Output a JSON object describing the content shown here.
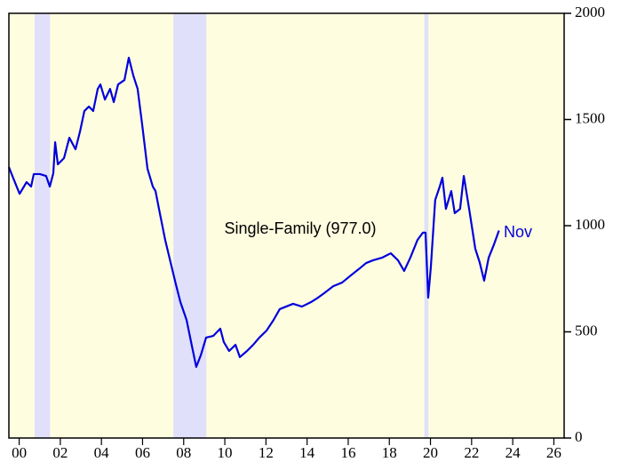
{
  "chart_data": {
    "type": "line",
    "annotations": [
      "Single-Family (977.0)",
      "Nov"
    ],
    "xlim": [
      2000,
      2027
    ],
    "xticks": [
      {
        "value": 2000.5,
        "label": "00"
      },
      {
        "value": 2002.5,
        "label": "02"
      },
      {
        "value": 2004.5,
        "label": "04"
      },
      {
        "value": 2006.5,
        "label": "06"
      },
      {
        "value": 2008.5,
        "label": "08"
      },
      {
        "value": 2010.5,
        "label": "10"
      },
      {
        "value": 2012.5,
        "label": "12"
      },
      {
        "value": 2014.5,
        "label": "14"
      },
      {
        "value": 2016.5,
        "label": "16"
      },
      {
        "value": 2018.5,
        "label": "18"
      },
      {
        "value": 2020.5,
        "label": "20"
      },
      {
        "value": 2022.5,
        "label": "22"
      },
      {
        "value": 2024.5,
        "label": "24"
      },
      {
        "value": 2026.5,
        "label": "26"
      }
    ],
    "ylim": [
      0,
      2000
    ],
    "yticks": [
      0,
      500,
      1000,
      1500,
      2000
    ],
    "shaded_periods": [
      [
        2001.25,
        2002.0
      ],
      [
        2008.0,
        2009.6
      ],
      [
        2020.2,
        2020.4
      ]
    ],
    "shade_color": "#e0e0fa",
    "background": "#fffde0",
    "series": [
      {
        "name": "Single-Family",
        "color": "#0000dd",
        "x": [
          2000.0,
          2000.17,
          2000.52,
          2000.86,
          2001.08,
          2001.21,
          2001.51,
          2001.81,
          2001.99,
          2002.16,
          2002.25,
          2002.38,
          2002.68,
          2002.94,
          2003.24,
          2003.46,
          2003.67,
          2003.89,
          2004.1,
          2004.32,
          2004.45,
          2004.67,
          2004.92,
          2005.1,
          2005.31,
          2005.62,
          2005.83,
          2006.05,
          2006.26,
          2006.48,
          2006.74,
          2007.0,
          2007.13,
          2007.34,
          2007.6,
          2007.86,
          2008.12,
          2008.34,
          2008.64,
          2008.86,
          2009.11,
          2009.33,
          2009.59,
          2009.94,
          2010.28,
          2010.45,
          2010.71,
          2011.02,
          2011.23,
          2011.58,
          2011.88,
          2012.18,
          2012.53,
          2012.87,
          2013.17,
          2013.48,
          2013.82,
          2014.25,
          2014.69,
          2015.03,
          2015.33,
          2015.77,
          2016.2,
          2016.63,
          2017.06,
          2017.37,
          2017.71,
          2018.14,
          2018.57,
          2018.92,
          2019.22,
          2019.52,
          2019.87,
          2020.13,
          2020.26,
          2020.39,
          2020.52,
          2020.73,
          2020.95,
          2021.08,
          2021.25,
          2021.51,
          2021.68,
          2021.94,
          2022.12,
          2022.38,
          2022.68,
          2022.89,
          2023.11,
          2023.33,
          2023.59,
          2023.83
        ],
        "values": [
          1276,
          1234,
          1150,
          1205,
          1184,
          1243,
          1243,
          1234,
          1184,
          1247,
          1393,
          1289,
          1318,
          1414,
          1360,
          1444,
          1540,
          1561,
          1540,
          1644,
          1665,
          1594,
          1644,
          1582,
          1665,
          1686,
          1791,
          1707,
          1644,
          1477,
          1268,
          1184,
          1163,
          1059,
          933,
          828,
          724,
          640,
          556,
          452,
          335,
          389,
          473,
          481,
          515,
          452,
          410,
          439,
          381,
          410,
          439,
          473,
          506,
          556,
          607,
          619,
          632,
          619,
          640,
          661,
          682,
          715,
          732,
          766,
          799,
          824,
          837,
          849,
          870,
          837,
          787,
          849,
          933,
          967,
          967,
          661,
          808,
          1121,
          1184,
          1226,
          1079,
          1163,
          1059,
          1079,
          1234,
          1079,
          891,
          828,
          741,
          849,
          912,
          977
        ]
      }
    ]
  }
}
